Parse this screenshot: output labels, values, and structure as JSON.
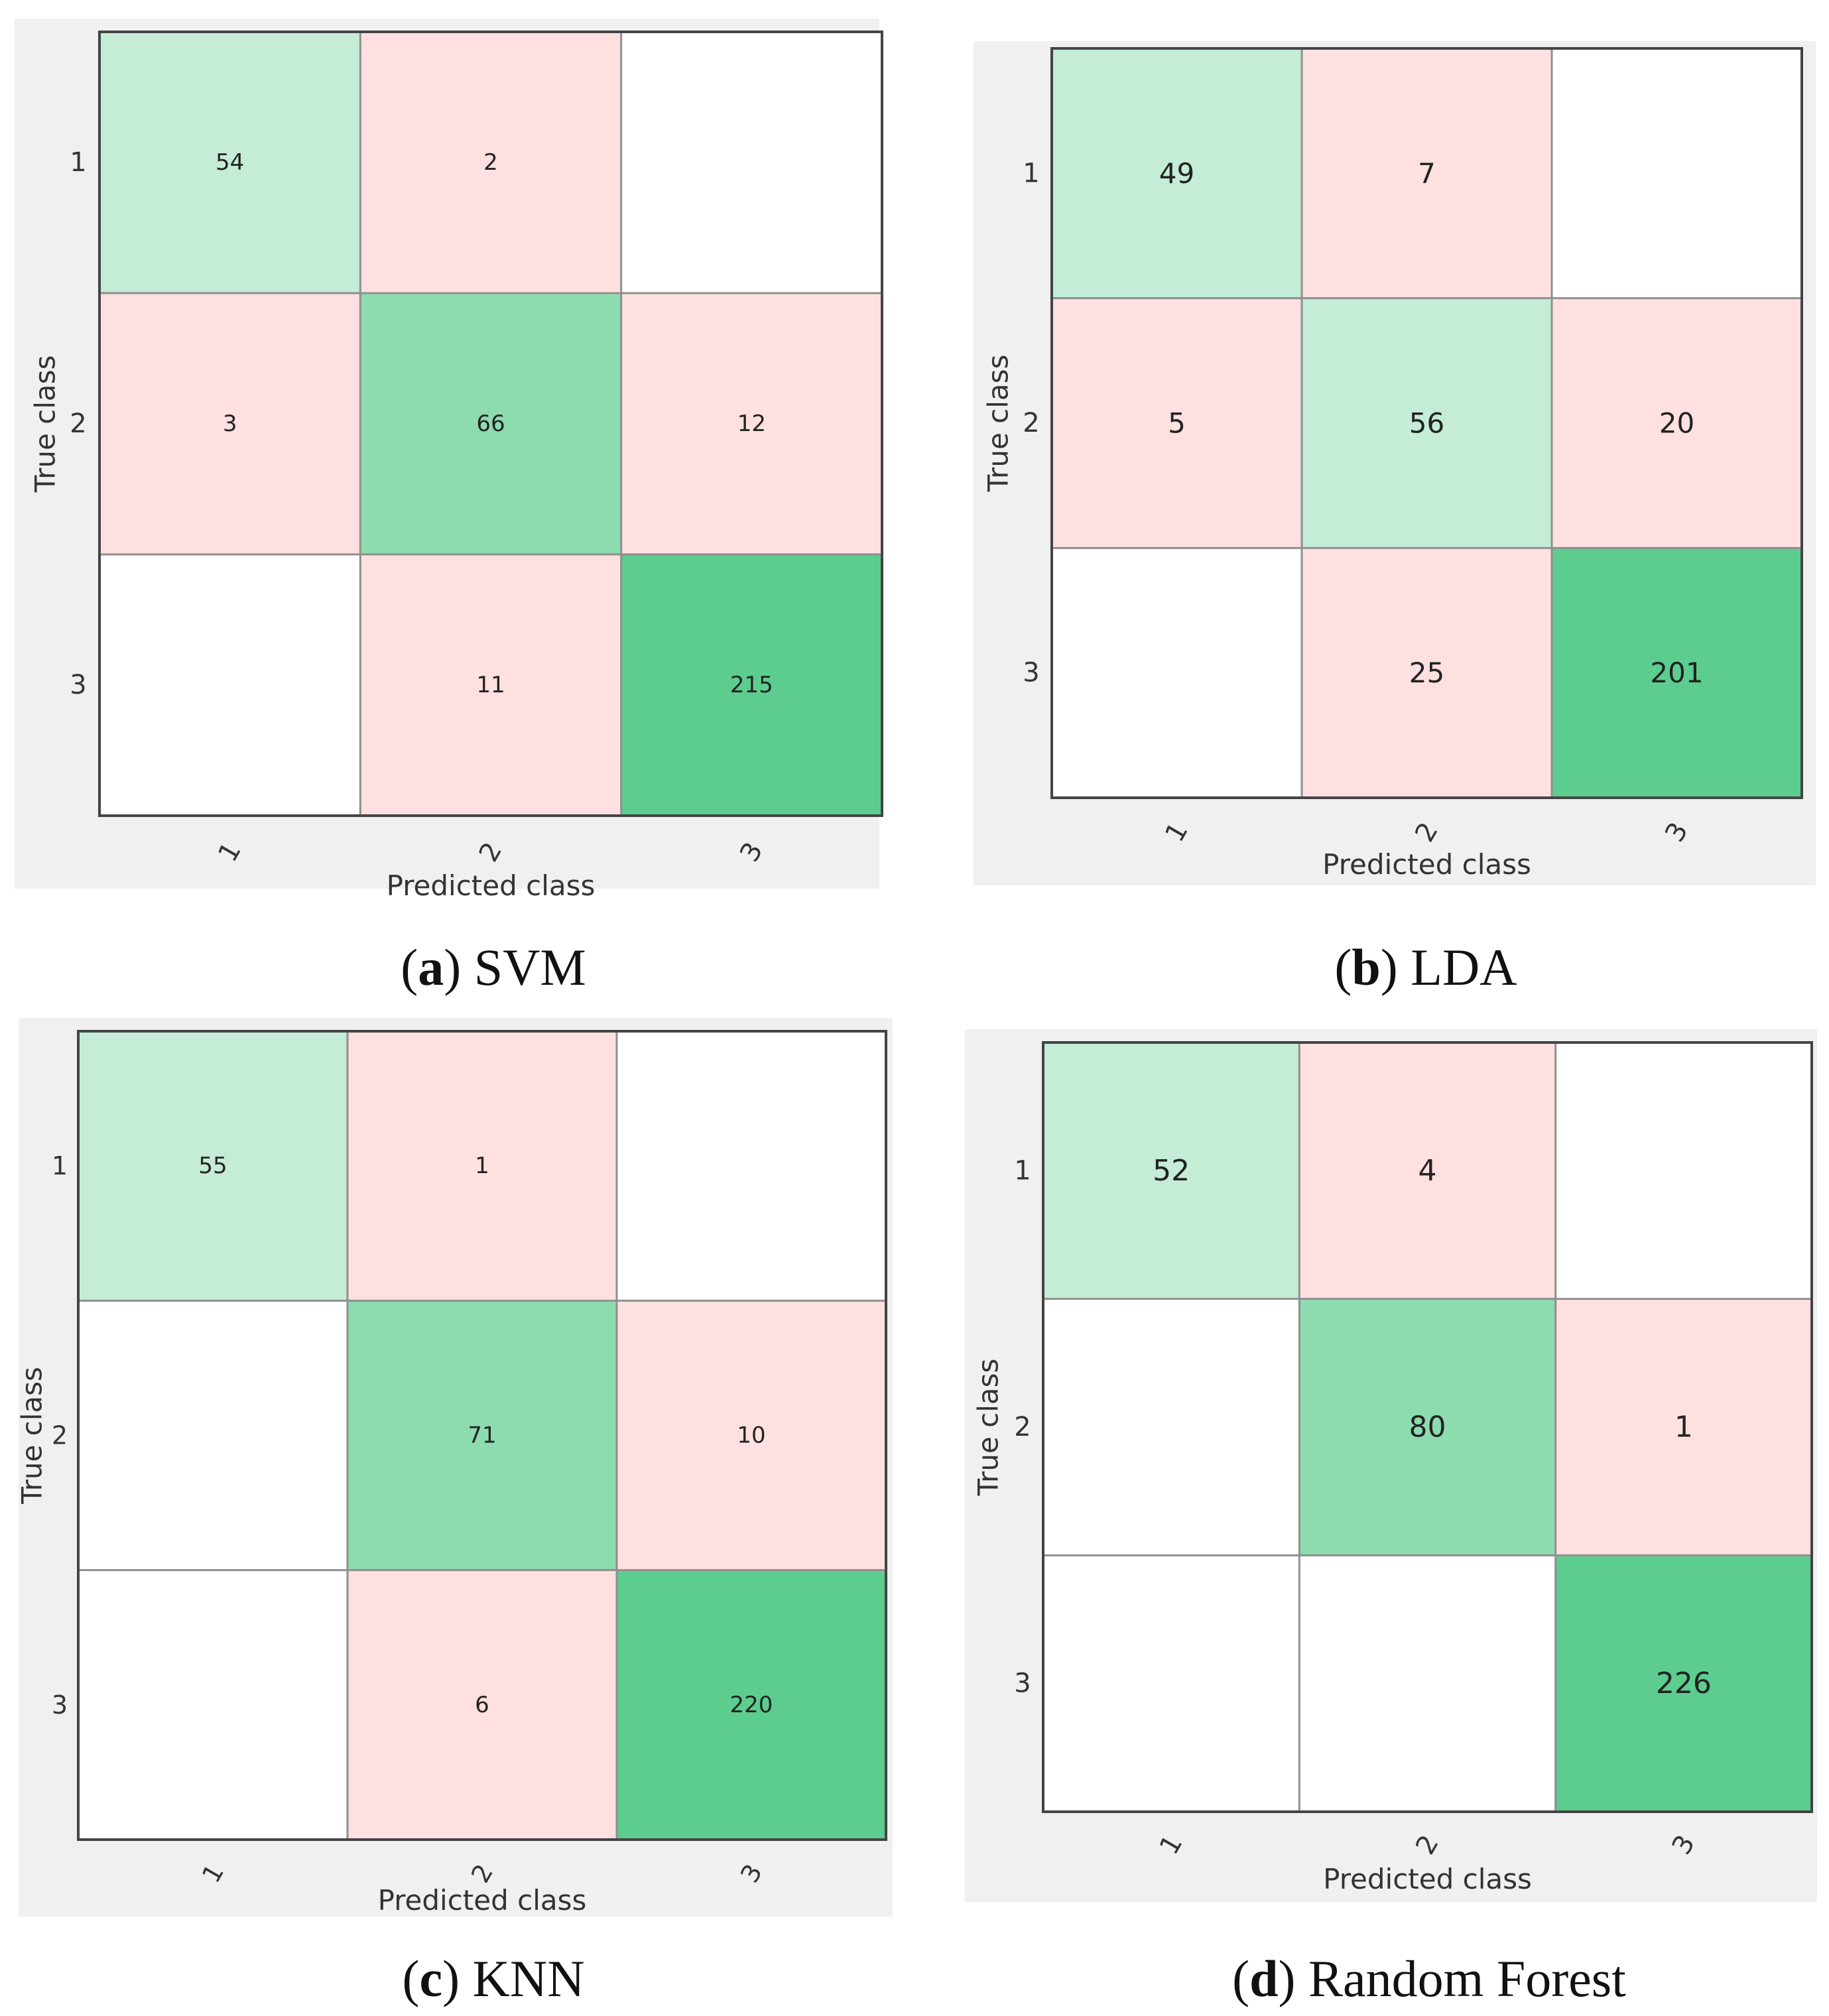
{
  "colors": {
    "panel_bg": "#f0f0f0",
    "border": "#444444",
    "divider": "#8f8f8f",
    "diag_light": "#c4ecd7",
    "diag_medium": "#8ddcb0",
    "diag_strong": "#5ccd8f",
    "offdiag": "#fee0e0",
    "empty": "#ffffff"
  },
  "chart_data": [
    {
      "type": "heatmap",
      "caption_letter": "(a)",
      "caption_text": "SVM",
      "xlabel": "Predicted class",
      "ylabel": "True class",
      "x_ticks": [
        "1",
        "2",
        "3"
      ],
      "y_ticks": [
        "1",
        "2",
        "3"
      ],
      "values": [
        [
          54,
          2,
          null
        ],
        [
          3,
          66,
          12
        ],
        [
          null,
          11,
          215
        ]
      ]
    },
    {
      "type": "heatmap",
      "caption_letter": "(b)",
      "caption_text": "LDA",
      "xlabel": "Predicted class",
      "ylabel": "True class",
      "x_ticks": [
        "1",
        "2",
        "3"
      ],
      "y_ticks": [
        "1",
        "2",
        "3"
      ],
      "values": [
        [
          49,
          7,
          null
        ],
        [
          5,
          56,
          20
        ],
        [
          null,
          25,
          201
        ]
      ]
    },
    {
      "type": "heatmap",
      "caption_letter": "(c)",
      "caption_text": "KNN",
      "xlabel": "Predicted class",
      "ylabel": "True class",
      "x_ticks": [
        "1",
        "2",
        "3"
      ],
      "y_ticks": [
        "1",
        "2",
        "3"
      ],
      "values": [
        [
          55,
          1,
          null
        ],
        [
          null,
          71,
          10
        ],
        [
          null,
          6,
          220
        ]
      ]
    },
    {
      "type": "heatmap",
      "caption_letter": "(d)",
      "caption_text": "Random Forest",
      "xlabel": "Predicted class",
      "ylabel": "True class",
      "x_ticks": [
        "1",
        "2",
        "3"
      ],
      "y_ticks": [
        "1",
        "2",
        "3"
      ],
      "values": [
        [
          52,
          4,
          null
        ],
        [
          null,
          80,
          1
        ],
        [
          null,
          null,
          226
        ]
      ]
    }
  ]
}
